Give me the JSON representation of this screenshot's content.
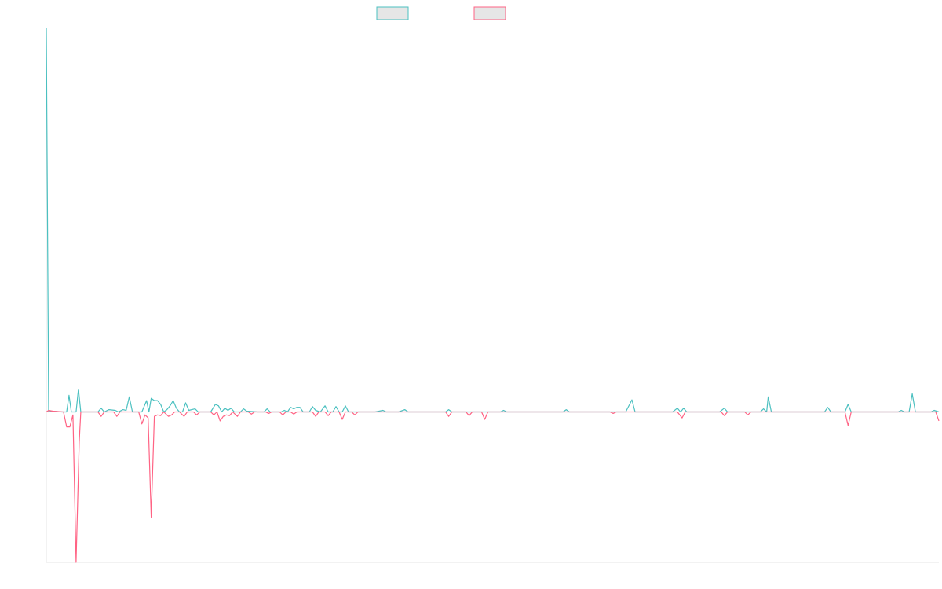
{
  "chart_data": {
    "type": "line",
    "title": "",
    "xlabel": "",
    "ylabel": "",
    "grid": false,
    "legend_placement": "top-center",
    "ylim": [
      -200,
      510
    ],
    "x_range": [
      0,
      1140
    ],
    "series": [
      {
        "color": "#4bc0c0",
        "fill": "#e6e6e6",
        "points": [
          [
            0,
            510
          ],
          [
            3,
            0
          ],
          [
            8,
            1
          ],
          [
            20,
            0
          ],
          [
            26,
            0
          ],
          [
            29,
            22
          ],
          [
            32,
            0
          ],
          [
            38,
            0
          ],
          [
            41,
            30
          ],
          [
            44,
            0
          ],
          [
            66,
            0
          ],
          [
            70,
            5
          ],
          [
            74,
            0
          ],
          [
            80,
            3
          ],
          [
            88,
            2
          ],
          [
            92,
            0
          ],
          [
            98,
            3
          ],
          [
            102,
            2
          ],
          [
            106,
            20
          ],
          [
            110,
            0
          ],
          [
            122,
            0
          ],
          [
            128,
            15
          ],
          [
            131,
            0
          ],
          [
            134,
            18
          ],
          [
            138,
            15
          ],
          [
            142,
            15
          ],
          [
            146,
            10
          ],
          [
            150,
            0
          ],
          [
            154,
            3
          ],
          [
            158,
            8
          ],
          [
            162,
            15
          ],
          [
            166,
            5
          ],
          [
            170,
            0
          ],
          [
            174,
            0
          ],
          [
            178,
            12
          ],
          [
            182,
            2
          ],
          [
            190,
            4
          ],
          [
            194,
            0
          ],
          [
            206,
            0
          ],
          [
            210,
            0
          ],
          [
            216,
            10
          ],
          [
            220,
            8
          ],
          [
            224,
            0
          ],
          [
            228,
            5
          ],
          [
            232,
            2
          ],
          [
            236,
            5
          ],
          [
            240,
            0
          ],
          [
            248,
            0
          ],
          [
            252,
            4
          ],
          [
            256,
            1
          ],
          [
            270,
            0
          ],
          [
            278,
            0
          ],
          [
            282,
            4
          ],
          [
            286,
            0
          ],
          [
            300,
            0
          ],
          [
            304,
            2
          ],
          [
            308,
            0
          ],
          [
            312,
            6
          ],
          [
            316,
            4
          ],
          [
            320,
            6
          ],
          [
            324,
            6
          ],
          [
            328,
            0
          ],
          [
            336,
            0
          ],
          [
            340,
            7
          ],
          [
            344,
            2
          ],
          [
            350,
            0
          ],
          [
            356,
            8
          ],
          [
            360,
            0
          ],
          [
            366,
            0
          ],
          [
            370,
            7
          ],
          [
            374,
            0
          ],
          [
            378,
            0
          ],
          [
            382,
            8
          ],
          [
            386,
            0
          ],
          [
            420,
            0
          ],
          [
            430,
            2
          ],
          [
            434,
            0
          ],
          [
            450,
            0
          ],
          [
            458,
            3
          ],
          [
            462,
            0
          ],
          [
            510,
            0
          ],
          [
            514,
            3
          ],
          [
            518,
            0
          ],
          [
            580,
            0
          ],
          [
            584,
            2
          ],
          [
            588,
            0
          ],
          [
            660,
            0
          ],
          [
            664,
            3
          ],
          [
            668,
            0
          ],
          [
            740,
            0
          ],
          [
            748,
            16
          ],
          [
            752,
            0
          ],
          [
            800,
            0
          ],
          [
            806,
            5
          ],
          [
            810,
            0
          ],
          [
            814,
            5
          ],
          [
            818,
            0
          ],
          [
            860,
            0
          ],
          [
            866,
            5
          ],
          [
            870,
            0
          ],
          [
            912,
            0
          ],
          [
            916,
            4
          ],
          [
            920,
            0
          ],
          [
            922,
            20
          ],
          [
            926,
            0
          ],
          [
            994,
            0
          ],
          [
            998,
            6
          ],
          [
            1002,
            0
          ],
          [
            1020,
            0
          ],
          [
            1024,
            10
          ],
          [
            1028,
            0
          ],
          [
            1088,
            0
          ],
          [
            1092,
            2
          ],
          [
            1096,
            0
          ],
          [
            1102,
            0
          ],
          [
            1106,
            24
          ],
          [
            1110,
            0
          ],
          [
            1130,
            0
          ],
          [
            1134,
            2
          ],
          [
            1140,
            0
          ]
        ]
      },
      {
        "color": "#ff6384",
        "fill": "#e6e6e6",
        "points": [
          [
            0,
            0
          ],
          [
            3,
            2
          ],
          [
            8,
            1
          ],
          [
            22,
            0
          ],
          [
            26,
            -20
          ],
          [
            30,
            -20
          ],
          [
            34,
            -4
          ],
          [
            38,
            -200
          ],
          [
            42,
            -40
          ],
          [
            44,
            0
          ],
          [
            66,
            0
          ],
          [
            70,
            -6
          ],
          [
            74,
            0
          ],
          [
            86,
            0
          ],
          [
            90,
            -6
          ],
          [
            94,
            0
          ],
          [
            118,
            0
          ],
          [
            122,
            -16
          ],
          [
            126,
            -4
          ],
          [
            130,
            -8
          ],
          [
            134,
            -140
          ],
          [
            138,
            -6
          ],
          [
            142,
            -4
          ],
          [
            146,
            -5
          ],
          [
            150,
            0
          ],
          [
            156,
            -6
          ],
          [
            160,
            -4
          ],
          [
            164,
            0
          ],
          [
            170,
            0
          ],
          [
            176,
            -6
          ],
          [
            180,
            0
          ],
          [
            188,
            0
          ],
          [
            192,
            -4
          ],
          [
            196,
            0
          ],
          [
            210,
            0
          ],
          [
            214,
            -4
          ],
          [
            218,
            0
          ],
          [
            222,
            -12
          ],
          [
            226,
            -6
          ],
          [
            230,
            -4
          ],
          [
            234,
            -5
          ],
          [
            238,
            0
          ],
          [
            244,
            -6
          ],
          [
            248,
            0
          ],
          [
            258,
            0
          ],
          [
            262,
            -3
          ],
          [
            266,
            0
          ],
          [
            280,
            0
          ],
          [
            284,
            -2
          ],
          [
            288,
            0
          ],
          [
            298,
            0
          ],
          [
            302,
            -4
          ],
          [
            306,
            0
          ],
          [
            312,
            0
          ],
          [
            316,
            -3
          ],
          [
            320,
            0
          ],
          [
            340,
            0
          ],
          [
            344,
            -6
          ],
          [
            348,
            0
          ],
          [
            356,
            0
          ],
          [
            360,
            -5
          ],
          [
            364,
            0
          ],
          [
            374,
            0
          ],
          [
            378,
            -10
          ],
          [
            382,
            0
          ],
          [
            390,
            0
          ],
          [
            394,
            -4
          ],
          [
            398,
            0
          ],
          [
            510,
            0
          ],
          [
            514,
            -6
          ],
          [
            518,
            0
          ],
          [
            536,
            0
          ],
          [
            540,
            -5
          ],
          [
            544,
            0
          ],
          [
            556,
            0
          ],
          [
            560,
            -10
          ],
          [
            564,
            0
          ],
          [
            720,
            0
          ],
          [
            724,
            -2
          ],
          [
            728,
            0
          ],
          [
            806,
            0
          ],
          [
            812,
            -8
          ],
          [
            816,
            0
          ],
          [
            862,
            0
          ],
          [
            866,
            -5
          ],
          [
            870,
            0
          ],
          [
            892,
            0
          ],
          [
            896,
            -4
          ],
          [
            900,
            0
          ],
          [
            1020,
            0
          ],
          [
            1024,
            -18
          ],
          [
            1028,
            0
          ],
          [
            1136,
            0
          ],
          [
            1140,
            -12
          ]
        ]
      }
    ]
  }
}
